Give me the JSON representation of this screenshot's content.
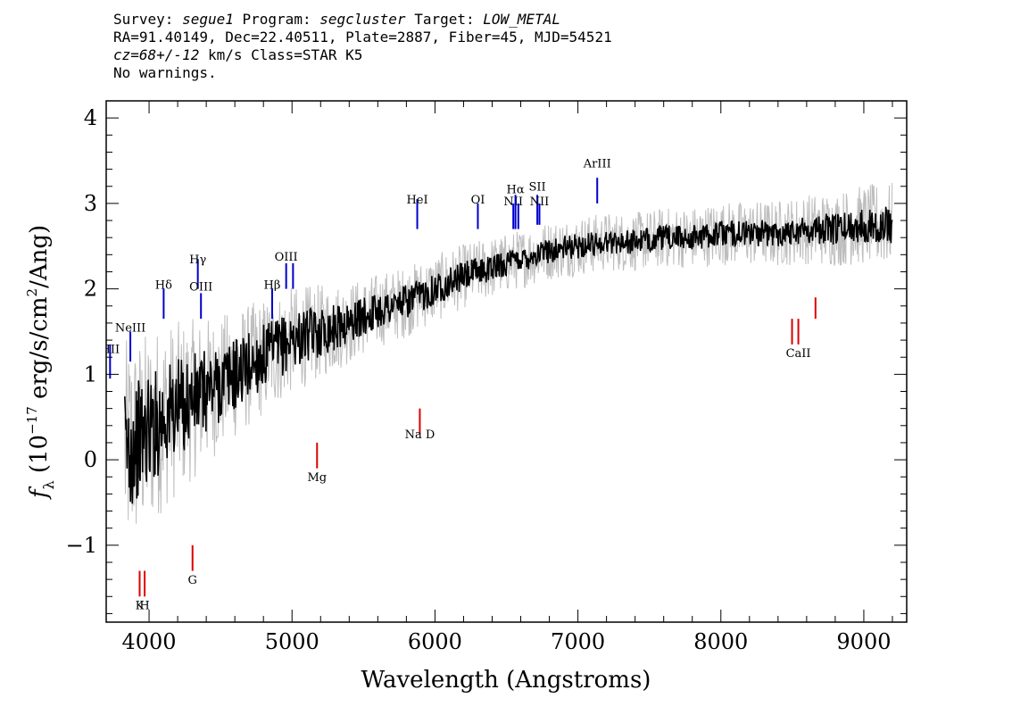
{
  "header": {
    "survey_label": "Survey:",
    "survey": "segue1",
    "program_label": "Program:",
    "program": "segcluster",
    "target_label": "Target:",
    "target": "LOW_METAL",
    "line2": "RA=91.40149, Dec=22.40511, Plate=2887, Fiber=45, MJD=54521",
    "cz": "cz=68+/-12",
    "cz_rest": " km/s Class=STAR K5",
    "warnings": "No warnings."
  },
  "chart_data": {
    "type": "line",
    "xlabel": "Wavelength (Angstroms)",
    "ylabel_parts": [
      "f",
      "λ",
      " (10",
      "−17",
      " erg/s/cm",
      "2",
      "/Ang)"
    ],
    "xlim": [
      3700,
      9300
    ],
    "ylim": [
      -1.9,
      4.2
    ],
    "x_ticks": [
      4000,
      5000,
      6000,
      7000,
      8000,
      9000
    ],
    "y_ticks": [
      -1,
      0,
      1,
      2,
      3,
      4
    ],
    "series": [
      {
        "role": "raw flux (grey)",
        "color": "#bdbdbd",
        "anchors": [
          [
            3830,
            0.1
          ],
          [
            3900,
            0.2
          ],
          [
            4000,
            0.35
          ],
          [
            4100,
            0.5
          ],
          [
            4200,
            0.6
          ],
          [
            4300,
            0.7
          ],
          [
            4400,
            0.8
          ],
          [
            4500,
            0.9
          ],
          [
            4600,
            1.0
          ],
          [
            4700,
            1.1
          ],
          [
            4800,
            1.2
          ],
          [
            4900,
            1.3
          ],
          [
            5000,
            1.4
          ],
          [
            5100,
            1.45
          ],
          [
            5200,
            1.5
          ],
          [
            5400,
            1.6
          ],
          [
            5600,
            1.75
          ],
          [
            5800,
            1.85
          ],
          [
            6000,
            2.0
          ],
          [
            6200,
            2.15
          ],
          [
            6400,
            2.25
          ],
          [
            6600,
            2.35
          ],
          [
            6800,
            2.45
          ],
          [
            7000,
            2.5
          ],
          [
            7200,
            2.55
          ],
          [
            7400,
            2.55
          ],
          [
            7600,
            2.6
          ],
          [
            7800,
            2.6
          ],
          [
            8000,
            2.65
          ],
          [
            8200,
            2.65
          ],
          [
            8400,
            2.65
          ],
          [
            8600,
            2.7
          ],
          [
            8800,
            2.7
          ],
          [
            9000,
            2.75
          ],
          [
            9200,
            2.75
          ]
        ],
        "noise": [
          [
            3830,
            1.3
          ],
          [
            4500,
            0.8
          ],
          [
            5500,
            0.45
          ],
          [
            6500,
            0.35
          ],
          [
            7500,
            0.35
          ],
          [
            8500,
            0.4
          ],
          [
            9200,
            0.5
          ]
        ]
      },
      {
        "role": "smoothed flux (black)",
        "color": "#000000",
        "anchors": [
          [
            3830,
            0.1
          ],
          [
            3900,
            0.2
          ],
          [
            4000,
            0.35
          ],
          [
            4100,
            0.5
          ],
          [
            4200,
            0.6
          ],
          [
            4300,
            0.7
          ],
          [
            4400,
            0.8
          ],
          [
            4500,
            0.9
          ],
          [
            4600,
            1.0
          ],
          [
            4700,
            1.1
          ],
          [
            4800,
            1.2
          ],
          [
            4900,
            1.3
          ],
          [
            5000,
            1.4
          ],
          [
            5100,
            1.45
          ],
          [
            5200,
            1.5
          ],
          [
            5400,
            1.6
          ],
          [
            5600,
            1.75
          ],
          [
            5800,
            1.85
          ],
          [
            6000,
            2.0
          ],
          [
            6200,
            2.15
          ],
          [
            6400,
            2.25
          ],
          [
            6600,
            2.35
          ],
          [
            6800,
            2.45
          ],
          [
            7000,
            2.5
          ],
          [
            7200,
            2.55
          ],
          [
            7400,
            2.55
          ],
          [
            7600,
            2.6
          ],
          [
            7800,
            2.6
          ],
          [
            8000,
            2.65
          ],
          [
            8200,
            2.65
          ],
          [
            8400,
            2.65
          ],
          [
            8600,
            2.7
          ],
          [
            8800,
            2.7
          ],
          [
            9000,
            2.75
          ],
          [
            9200,
            2.75
          ]
        ],
        "noise": [
          [
            3830,
            0.75
          ],
          [
            4500,
            0.45
          ],
          [
            5500,
            0.22
          ],
          [
            6500,
            0.15
          ],
          [
            7500,
            0.14
          ],
          [
            8500,
            0.16
          ],
          [
            9200,
            0.22
          ]
        ]
      }
    ],
    "emission_lines": [
      {
        "name": "HII",
        "x": 3727,
        "y1": 0.95,
        "y2": 1.35,
        "label_y": 1.25
      },
      {
        "name": "NeIII",
        "x": 3869,
        "y1": 1.15,
        "y2": 1.5,
        "label_y": 1.5
      },
      {
        "name": "Hδ",
        "x": 4102,
        "y1": 1.65,
        "y2": 2.0,
        "label_y": 2.0
      },
      {
        "name": "Hγ",
        "x": 4341,
        "y1": 2.0,
        "y2": 2.35,
        "label_y": 2.3
      },
      {
        "name": "OIII",
        "x": 4363,
        "y1": 1.65,
        "y2": 1.95,
        "label_y": 1.98
      },
      {
        "name": "Hβ",
        "x": 4861,
        "y1": 1.65,
        "y2": 2.0,
        "label_y": 2.0
      },
      {
        "name": "OIII",
        "x": 4959,
        "y1": 2.0,
        "y2": 2.3,
        "label_y": 2.33
      },
      {
        "name": "",
        "x": 5007,
        "y1": 2.0,
        "y2": 2.3,
        "label_y": 2.33
      },
      {
        "name": "HeI",
        "x": 5876,
        "y1": 2.7,
        "y2": 3.05,
        "label_y": 3.0
      },
      {
        "name": "OI",
        "x": 6300,
        "y1": 2.7,
        "y2": 3.0,
        "label_y": 3.0
      },
      {
        "name": "NII",
        "x": 6548,
        "y1": 2.7,
        "y2": 3.0,
        "label_y": 2.98
      },
      {
        "name": "Hα",
        "x": 6563,
        "y1": 2.7,
        "y2": 3.1,
        "label_y": 3.12
      },
      {
        "name": "",
        "x": 6583,
        "y1": 2.7,
        "y2": 3.0,
        "label_y": 3.0
      },
      {
        "name": "SII",
        "x": 6716,
        "y1": 2.75,
        "y2": 3.1,
        "label_y": 3.15
      },
      {
        "name": "NII",
        "x": 6731,
        "y1": 2.75,
        "y2": 3.0,
        "label_y": 2.98
      },
      {
        "name": "ArIII",
        "x": 7135,
        "y1": 3.0,
        "y2": 3.3,
        "label_y": 3.42
      }
    ],
    "absorption_lines": [
      {
        "name": "K",
        "x": 3934,
        "y1": -1.3,
        "y2": -1.6,
        "label_y": -1.75
      },
      {
        "name": "H",
        "x": 3969,
        "y1": -1.3,
        "y2": -1.6,
        "label_y": -1.75
      },
      {
        "name": "G",
        "x": 4304,
        "y1": -1.0,
        "y2": -1.3,
        "label_y": -1.45
      },
      {
        "name": "Mg",
        "x": 5175,
        "y1": 0.2,
        "y2": -0.1,
        "label_y": -0.25
      },
      {
        "name": "Na  D",
        "x": 5894,
        "y1": 0.6,
        "y2": 0.3,
        "label_y": 0.25
      },
      {
        "name": "",
        "x": 8498,
        "y1": 1.65,
        "y2": 1.35,
        "label_y": 1.35
      },
      {
        "name": "CaII",
        "x": 8542,
        "y1": 1.65,
        "y2": 1.35,
        "label_y": 1.2
      },
      {
        "name": "",
        "x": 8662,
        "y1": 1.9,
        "y2": 1.65,
        "label_y": 1.65
      }
    ],
    "emission_color": "#0000cc",
    "absorption_color": "#dd0000",
    "grid": false,
    "legend": "none"
  }
}
